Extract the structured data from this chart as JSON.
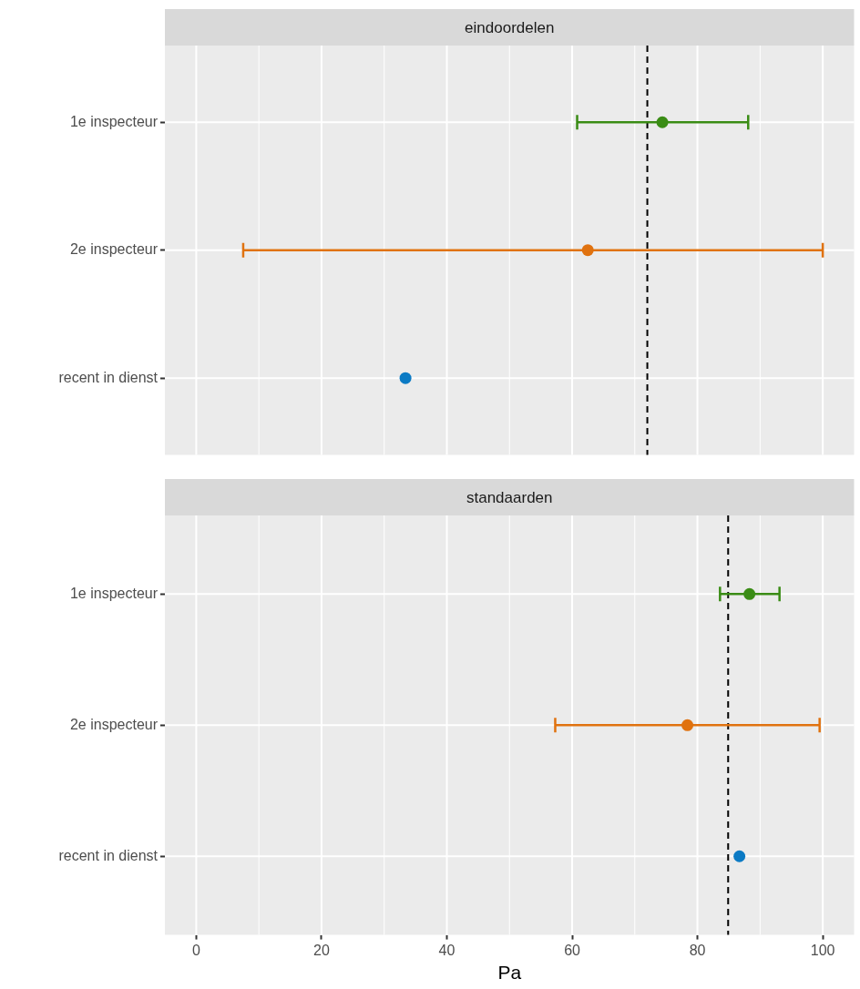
{
  "chart_data": [
    {
      "type": "scatter",
      "orientation": "horizontal",
      "title": "eindoordelen",
      "categories": [
        "1e inspecteur",
        "2e inspecteur",
        "recent in dienst"
      ],
      "values": [
        74.4,
        62.5,
        33.4
      ],
      "colors": [
        "#3a8c15",
        "#e0720f",
        "#0b7ac4"
      ],
      "errors": [
        [
          60.8,
          88.1
        ],
        [
          7.5,
          100
        ],
        null
      ],
      "xlim": [
        -5,
        105
      ],
      "xticks": [
        0,
        20,
        40,
        60,
        80,
        100
      ],
      "ref_lines": [
        {
          "axis": "x",
          "value": 72,
          "color": "#000000",
          "line_style": "dashed"
        }
      ],
      "grid": true,
      "marker": "circle",
      "legend": false,
      "tick_labels": "y"
    },
    {
      "type": "scatter",
      "orientation": "horizontal",
      "title": "standaarden",
      "xlabel": "Pa",
      "categories": [
        "1e inspecteur",
        "2e inspecteur",
        "recent in dienst"
      ],
      "values": [
        88.3,
        78.4,
        86.7
      ],
      "colors": [
        "#3a8c15",
        "#e0720f",
        "#0b7ac4"
      ],
      "errors": [
        [
          83.6,
          93.1
        ],
        [
          57.3,
          99.5
        ],
        null
      ],
      "xlim": [
        -5,
        105
      ],
      "xticks": [
        0,
        20,
        40,
        60,
        80,
        100
      ],
      "ref_lines": [
        {
          "axis": "x",
          "value": 84.9,
          "color": "#000000",
          "line_style": "dashed"
        }
      ],
      "grid": true,
      "marker": "circle",
      "legend": false
    }
  ]
}
